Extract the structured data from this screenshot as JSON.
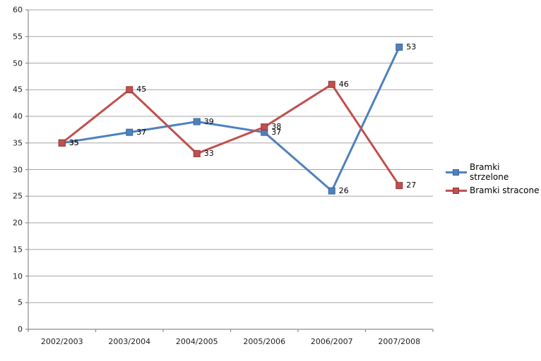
{
  "chart_data": {
    "type": "line",
    "title": "",
    "xlabel": "",
    "ylabel": "",
    "categories": [
      "2002/2003",
      "2003/2004",
      "2004/2005",
      "2005/2006",
      "2006/2007",
      "2007/2008"
    ],
    "series": [
      {
        "name": "Bramki strzelone",
        "color": "#4F81BD",
        "marker_border": "#3A6598",
        "marker": "square",
        "values": [
          35,
          37,
          39,
          37,
          26,
          53
        ]
      },
      {
        "name": "Bramki stracone",
        "color": "#C0504D",
        "marker_border": "#943634",
        "marker": "square",
        "values": [
          35,
          45,
          33,
          38,
          46,
          27
        ]
      }
    ],
    "ylim": [
      0,
      60
    ],
    "ytick_step": 5,
    "ytick_labels": [
      "0",
      "5",
      "10",
      "15",
      "20",
      "25",
      "30",
      "35",
      "40",
      "45",
      "50",
      "55",
      "60"
    ],
    "grid": true,
    "gridline_color": "#A6A6A6",
    "axis_color": "#8C8C8C",
    "tick_label_color": "#1f1f1f",
    "data_label_color": "#000000",
    "background_color": "#FFFFFF",
    "legend_position": "right",
    "data_labels": true,
    "data_label_position": "right"
  }
}
